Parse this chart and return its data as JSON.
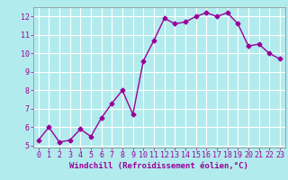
{
  "x": [
    0,
    1,
    2,
    3,
    4,
    5,
    6,
    7,
    8,
    9,
    10,
    11,
    12,
    13,
    14,
    15,
    16,
    17,
    18,
    19,
    20,
    21,
    22,
    23
  ],
  "y": [
    5.3,
    6.0,
    5.2,
    5.3,
    5.9,
    5.5,
    6.5,
    7.3,
    8.0,
    6.7,
    9.6,
    10.7,
    11.9,
    11.6,
    11.7,
    12.0,
    12.2,
    12.0,
    12.2,
    11.6,
    10.4,
    10.5,
    10.0,
    9.7
  ],
  "line_color": "#990099",
  "marker": "D",
  "marker_size": 2.5,
  "line_width": 1.0,
  "xlabel": "Windchill (Refroidissement éolien,°C)",
  "xlim": [
    -0.5,
    23.5
  ],
  "ylim": [
    4.9,
    12.5
  ],
  "yticks": [
    5,
    6,
    7,
    8,
    9,
    10,
    11,
    12
  ],
  "xticks": [
    0,
    1,
    2,
    3,
    4,
    5,
    6,
    7,
    8,
    9,
    10,
    11,
    12,
    13,
    14,
    15,
    16,
    17,
    18,
    19,
    20,
    21,
    22,
    23
  ],
  "background_color": "#b2ebee",
  "grid_color": "#ffffff",
  "tick_color": "#990099",
  "label_color": "#990099",
  "xlabel_fontsize": 6.5,
  "tick_fontsize": 6.0
}
